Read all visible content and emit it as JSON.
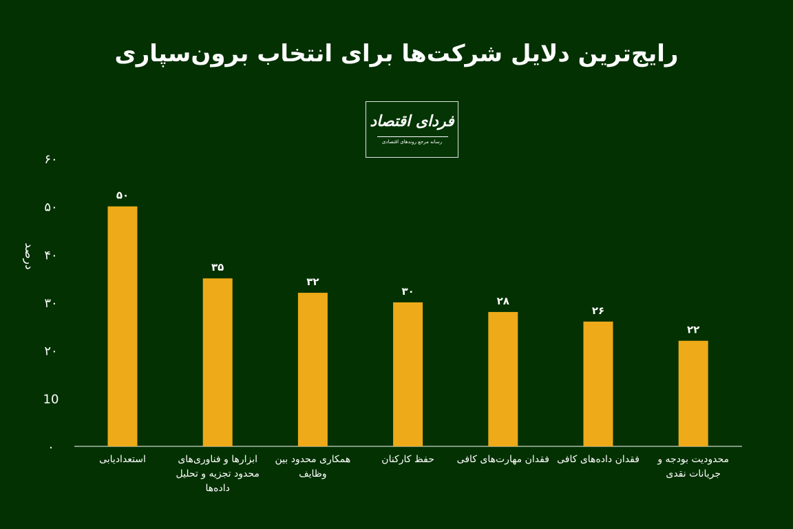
{
  "title": "رایج‌ترین دلایل شرکت‌ها برای انتخاب برون‌سپاری",
  "logo": {
    "name": "فردای اقتصاد",
    "tagline": "رسانه مرجع روندهای اقتصادی"
  },
  "colors": {
    "background": "#033102",
    "bar": "#eeaa18",
    "text": "#ffffff"
  },
  "chart_data": {
    "type": "bar",
    "title": "رایج‌ترین دلایل شرکت‌ها برای انتخاب برون‌سپاری",
    "ylabel": "درصد",
    "xlabel": "",
    "ylim": [
      0,
      60
    ],
    "yticks": [
      0,
      10,
      20,
      30,
      40,
      50,
      60
    ],
    "ytick_labels": [
      "۰",
      "10",
      "۲۰",
      "۳۰",
      "۴۰",
      "۵۰",
      "۶۰"
    ],
    "grid": false,
    "categories": [
      "استعدادیابی",
      "ابزارها و فناوری‌های محدود تجزیه و تحلیل داده‌ها",
      "همکاری محدود بین وظایف",
      "حفظ کارکنان",
      "فقدان مهارت‌های کافی",
      "فقدان داده‌های کافی",
      "محدودیت بودجه و جریانات نقدی"
    ],
    "values": [
      50,
      35,
      32,
      30,
      28,
      26,
      22
    ],
    "value_labels": [
      "۵۰",
      "۳۵",
      "۳۲",
      "۳۰",
      "۲۸",
      "۲۶",
      "۲۲"
    ]
  }
}
